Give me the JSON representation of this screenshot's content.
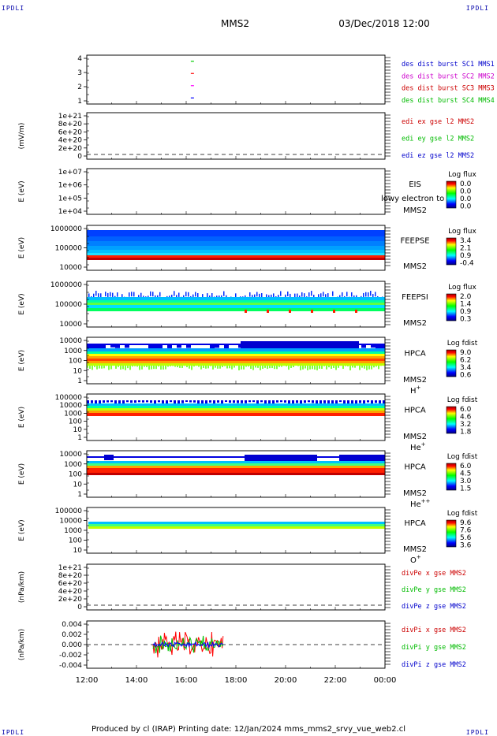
{
  "corner_label": "IPDLI",
  "header": {
    "spacecraft": "MMS2",
    "datetime": "03/Dec/2018 12:00"
  },
  "footer": {
    "text": "Produced by cl (IRAP)   Printing date: 12/Jan/2024   mms_mms2_srvy_vue_web2.cl"
  },
  "chart_data": [
    {
      "type": "scatter",
      "name": "burst-availability",
      "yticks": [
        "4",
        "3",
        "2",
        "1"
      ],
      "ylim": [
        0.5,
        4.5
      ],
      "points": [
        {
          "time": "16:15",
          "y": 4,
          "color": "#00cc00"
        },
        {
          "time": "16:15",
          "y": 3,
          "color": "#ff0000"
        },
        {
          "time": "16:15",
          "y": 2,
          "color": "#ff00ff"
        },
        {
          "time": "16:15",
          "y": 1,
          "color": "#0000ff"
        }
      ],
      "legend": [
        {
          "text": "des dist burst SC1 MMS1",
          "color": "#0000cc"
        },
        {
          "text": "des dist burst SC2 MMS2",
          "color": "#cc00cc"
        },
        {
          "text": "des dist burst SC3 MMS3",
          "color": "#cc0000"
        },
        {
          "text": "des dist burst SC4 MMS4",
          "color": "#00bb00"
        }
      ]
    },
    {
      "type": "line",
      "name": "edi-efield",
      "ylabel": "(mV/m)",
      "yticks": [
        "1e+21",
        "8e+20",
        "6e+20",
        "4e+20",
        "2e+20",
        "0"
      ],
      "zero_line": true,
      "legend": [
        {
          "text": "edi ex gse l2 MMS2",
          "color": "#cc0000"
        },
        {
          "text": "edi ey gse l2 MMS2",
          "color": "#00bb00"
        },
        {
          "text": "edi ez gse l2 MMS2",
          "color": "#0000cc"
        }
      ]
    },
    {
      "type": "heatmap",
      "name": "eis-spectrogram",
      "ylabel": "E (eV)",
      "yticks": [
        "1e+07",
        "1e+06",
        "1e+05",
        "1e+04"
      ],
      "label": "EIS",
      "label2": "MMS2",
      "overlay_text": "lowy electron to",
      "colorbar": {
        "title": "Log flux",
        "ticks": [
          "0.0",
          "0.0",
          "0.0",
          "0.0"
        ]
      },
      "empty": true
    },
    {
      "type": "heatmap",
      "name": "feeps-electron",
      "ylabel": "E (eV)",
      "yticks": [
        "1000000",
        "100000",
        "10000"
      ],
      "label": "FEEPSE",
      "label2": "MMS2",
      "colorbar": {
        "title": "Log flux",
        "ticks": [
          "3.4",
          "2.1",
          "0.9",
          "-0.4"
        ]
      },
      "time_range": [
        "12:00",
        "00:00"
      ]
    },
    {
      "type": "heatmap",
      "name": "feeps-ion",
      "ylabel": "E (eV)",
      "yticks": [
        "1000000",
        "100000",
        "10000"
      ],
      "label": "FEEPSI",
      "label2": "MMS2",
      "colorbar": {
        "title": "Log flux",
        "ticks": [
          "2.0",
          "1.4",
          "0.9",
          "0.3"
        ]
      },
      "time_range": [
        "12:00",
        "00:00"
      ]
    },
    {
      "type": "heatmap",
      "name": "hpca-hplus",
      "ylabel": "E (eV)",
      "yticks": [
        "10000",
        "1000",
        "100",
        "10",
        "1"
      ],
      "label": "HPCA",
      "label2": "MMS2",
      "species": "H",
      "species_sup": "+",
      "colorbar": {
        "title": "Log fdist",
        "ticks": [
          "9.0",
          "6.2",
          "3.4",
          "0.6"
        ]
      },
      "time_range": [
        "12:00",
        "00:00"
      ]
    },
    {
      "type": "heatmap",
      "name": "hpca-heplus",
      "ylabel": "E (eV)",
      "yticks": [
        "100000",
        "10000",
        "1000",
        "100",
        "10",
        "1"
      ],
      "label": "HPCA",
      "label2": "MMS2",
      "species": "He",
      "species_sup": "+",
      "colorbar": {
        "title": "Log fdist",
        "ticks": [
          "6.0",
          "4.6",
          "3.2",
          "1.8"
        ]
      },
      "time_range": [
        "12:00",
        "00:00"
      ]
    },
    {
      "type": "heatmap",
      "name": "hpca-heplusplus",
      "ylabel": "E (eV)",
      "yticks": [
        "10000",
        "1000",
        "100",
        "10",
        "1"
      ],
      "label": "HPCA",
      "label2": "MMS2",
      "species": "He",
      "species_sup": "++",
      "colorbar": {
        "title": "Log fdist",
        "ticks": [
          "6.0",
          "4.5",
          "3.0",
          "1.5"
        ]
      },
      "time_range": [
        "12:00",
        "00:00"
      ]
    },
    {
      "type": "heatmap",
      "name": "hpca-oplus",
      "ylabel": "E (eV)",
      "yticks": [
        "100000",
        "10000",
        "1000",
        "100",
        "10"
      ],
      "label": "HPCA",
      "label2": "MMS2",
      "species": "O",
      "species_sup": "+",
      "colorbar": {
        "title": "Log fdist",
        "ticks": [
          "9.6",
          "7.6",
          "5.6",
          "3.6"
        ]
      },
      "time_range": [
        "12:00",
        "00:00"
      ]
    },
    {
      "type": "line",
      "name": "divpe",
      "ylabel": "(nPa/km)",
      "yticks": [
        "1e+21",
        "8e+20",
        "6e+20",
        "4e+20",
        "2e+20",
        "0"
      ],
      "zero_line": true,
      "legend": [
        {
          "text": "divPe x gse MMS2",
          "color": "#cc0000"
        },
        {
          "text": "divPe y gse MMS2",
          "color": "#00bb00"
        },
        {
          "text": "divPe z gse MMS2",
          "color": "#0000cc"
        }
      ]
    },
    {
      "type": "line",
      "name": "divpi",
      "ylabel": "(nPa/km)",
      "yticks": [
        "0.004",
        "0.002",
        "0.000",
        "-0.002",
        "-0.004"
      ],
      "ylim": [
        -0.005,
        0.005
      ],
      "zero_line": true,
      "data_span": [
        "14:40",
        "17:30"
      ],
      "legend": [
        {
          "text": "divPi x gse MMS2",
          "color": "#cc0000"
        },
        {
          "text": "divPi y gse MMS2",
          "color": "#00bb00"
        },
        {
          "text": "divPi z gse MMS2",
          "color": "#0000cc"
        }
      ]
    }
  ],
  "xaxis": {
    "ticks": [
      "12:00",
      "14:00",
      "16:00",
      "18:00",
      "20:00",
      "22:00",
      "00:00"
    ]
  }
}
